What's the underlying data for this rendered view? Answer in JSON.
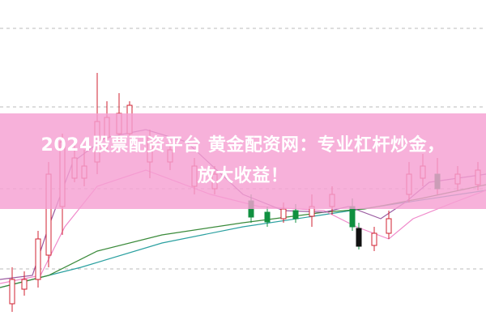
{
  "banner": {
    "lines": [
      "2024股票配资平台 黄金配资网：专业杠杆炒金，",
      "放大收益！"
    ]
  }
}
